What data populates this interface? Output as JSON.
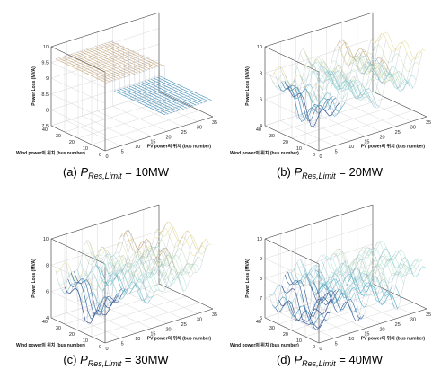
{
  "chart_data": [
    {
      "type": "surface",
      "caption_label": "(a)",
      "caption_symbol": "P",
      "caption_subscript": "Res,Limit",
      "caption_value": "= 10MW",
      "xlabel": "PV power의 위치 (bus number)",
      "ylabel": "Wind power의 위치 (bus number)",
      "zlabel": "Power Loss (MVA)",
      "x_ticks": [
        "0",
        "5",
        "10",
        "15",
        "20",
        "25",
        "30",
        "35"
      ],
      "y_ticks": [
        "0",
        "10",
        "20",
        "30",
        "40"
      ],
      "z_ticks": [
        "7.5",
        "8",
        "8.5",
        "9",
        "9.5",
        "10"
      ],
      "xlim": [
        0,
        35
      ],
      "ylim": [
        0,
        40
      ],
      "zlim": [
        7.5,
        10
      ],
      "shape": "step",
      "step_bus": 20,
      "low_level": 8.0,
      "high_level": 9.6
    },
    {
      "type": "surface",
      "caption_label": "(b)",
      "caption_symbol": "P",
      "caption_subscript": "Res,Limit",
      "caption_value": "= 20MW",
      "xlabel": "PV power의 위치 (bus number)",
      "ylabel": "Wind power의 위치 (bus number)",
      "zlabel": "Power Loss (MVA)",
      "x_ticks": [
        "0",
        "5",
        "10",
        "15",
        "20",
        "25",
        "30",
        "35"
      ],
      "y_ticks": [
        "0",
        "10",
        "20",
        "30",
        "40"
      ],
      "z_ticks": [
        "4",
        "6",
        "8",
        "10"
      ],
      "xlim": [
        0,
        35
      ],
      "ylim": [
        0,
        40
      ],
      "zlim": [
        4,
        10
      ],
      "shape": "wavy",
      "base_level": 7.3,
      "amplitude": 1.5
    },
    {
      "type": "surface",
      "caption_label": "(c)",
      "caption_symbol": "P",
      "caption_subscript": "Res,Limit",
      "caption_value": "= 30MW",
      "xlabel": "PV power의 위치 (bus number)",
      "ylabel": "Wind power의 위치 (bus number)",
      "zlabel": "Power Loss (MVA)",
      "x_ticks": [
        "0",
        "5",
        "10",
        "15",
        "20",
        "25",
        "30",
        "35"
      ],
      "y_ticks": [
        "0",
        "10",
        "20",
        "30",
        "40"
      ],
      "z_ticks": [
        "4",
        "6",
        "8",
        "10"
      ],
      "xlim": [
        0,
        35
      ],
      "ylim": [
        0,
        40
      ],
      "zlim": [
        4,
        10
      ],
      "shape": "wavy",
      "base_level": 7.3,
      "amplitude": 1.6
    },
    {
      "type": "surface",
      "caption_label": "(d)",
      "caption_symbol": "P",
      "caption_subscript": "Res,Limit",
      "caption_value": "= 40MW",
      "xlabel": "PV power의 위치 (bus number)",
      "ylabel": "Wind power의 위치 (bus number)",
      "zlabel": "Power Loss (MVA)",
      "x_ticks": [
        "0",
        "5",
        "10",
        "15",
        "20",
        "25",
        "30",
        "35"
      ],
      "y_ticks": [
        "0",
        "10",
        "20",
        "30",
        "40"
      ],
      "z_ticks": [
        "6",
        "7",
        "8",
        "9",
        "10"
      ],
      "xlim": [
        0,
        35
      ],
      "ylim": [
        0,
        40
      ],
      "zlim": [
        6,
        10
      ],
      "shape": "wavy",
      "base_level": 7.6,
      "amplitude": 1.1
    }
  ]
}
